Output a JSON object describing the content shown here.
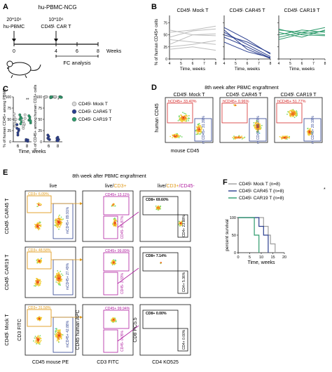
{
  "panels": {
    "A": {
      "letter": "A",
      "model": "hu-PBMC-NCG",
      "inject_pbmc_count": "20*10⁶",
      "inject_pbmc_label": "hu-PBMC",
      "inject_car_count": "10*10⁶",
      "inject_car_label": "CD45ᴸ CAR T",
      "timeline_ticks": [
        "0",
        "4",
        "6",
        "8"
      ],
      "timeline_unit": "Weeks",
      "timeline_caption": "FC analysis"
    },
    "B": {
      "letter": "B",
      "ylabel": "% of human CD45+ cells",
      "xlabel": "Time, weeks",
      "xticks": [
        "4",
        "5",
        "6",
        "7",
        "8"
      ],
      "yticks": [
        "0",
        "25",
        "50",
        "75"
      ],
      "subplots": [
        {
          "title": "CD45ᴸ Mock T",
          "color": "#bdbdbd"
        },
        {
          "title": "CD45ᴸ CAR45 T",
          "color": "#2b3f8f"
        },
        {
          "title": "CD45ᴸ CAR19 T",
          "color": "#2e9b6c"
        }
      ]
    },
    "C": {
      "letter": "C",
      "ylabel_left": "% of human CD45+ among PBMC",
      "ylabel_right": "% of CD45+ among human CD3+ cells",
      "yticks_left": [
        "0",
        "25",
        "50",
        "75",
        "100"
      ],
      "yticks_right": [
        "0",
        "25",
        "50",
        "75",
        "100"
      ],
      "xticks": [
        "6",
        "8"
      ],
      "xlabel": "Time, weeks",
      "legend": [
        {
          "label": "CD45ᴸ Mock T",
          "color": "#d9d9d9"
        },
        {
          "label": "CD45ᴸ CAR45 T",
          "color": "#2b3f8f"
        },
        {
          "label": "CD45ᴸ CAR19 T",
          "color": "#2e9b6c"
        }
      ],
      "sig_left": "**",
      "sig_right": "*"
    },
    "D": {
      "letter": "D",
      "title": "8th week after PBMC engraftment",
      "ylabel": "human CD45",
      "xlabel": "mouse CD45",
      "plots": [
        {
          "title": "CD45ᴸ Mock T",
          "gate_h": "hCD45+ 33.40%",
          "gate_m": "m CD45+ 31.39%"
        },
        {
          "title": "CD45ᴸ CAR45 T",
          "gate_h": "hCD45+ 0.96%",
          "gate_m": "m CD45+ 56.13%"
        },
        {
          "title": "CD45ᴸ CAR19 T",
          "gate_h": "hCD45+ 51.77%",
          "gate_m": "m CD45+ 20.19%"
        }
      ]
    },
    "E": {
      "letter": "E",
      "title": "8th week after PBMC engraftment",
      "col_live": "live",
      "col_cd3_prefix": "live/",
      "col_cd3_highlight": "CD3+",
      "col_cd4_a": "live/",
      "col_cd4_b": "CD3+",
      "col_cd4_c": "/CD45-",
      "rows": [
        {
          "label": "CD45ᴸ CAR45 T",
          "cd3": "CD3+ 6.09%",
          "mcd45": "mCD45+ 89.91%",
          "cd45pos": "CD45+ 13.11%",
          "cd45neg": "CD45- 85.87%",
          "cd8": "CD8+ 69.60%",
          "cd4": "CD4+ 23.88%"
        },
        {
          "label": "CD45ᴸ CAR19 T",
          "cd3": "CD3+ 48.58%",
          "mcd45": "mCD45+ 27.49%",
          "cd45pos": "CD45+ 99.89%",
          "cd45neg": "CD45- 3.33%",
          "cd8": "CD8+ 7.14%",
          "cd4": "CD4+ 5.36%"
        },
        {
          "label": "CD45ᴸ Mock T",
          "cd3": "CD3+ 31.58%",
          "mcd45": "mCD45+ 42.88%",
          "cd45pos": "CD45+ 99.94%",
          "cd45neg": "CD45- 0.05%",
          "cd8": "CD8+ 0.00%",
          "cd4": "CD4+ 0.00%"
        }
      ],
      "x1": "CD45 mouse PE",
      "y1": "CD3 FITC",
      "x2": "CD3 FITC",
      "y2": "CD45 human APC",
      "x3": "CD4 KO525",
      "y3": "CD8 PC5.5"
    },
    "F": {
      "letter": "F",
      "legend": [
        {
          "label": "CD45ᴸ Mock T (n=8)",
          "color": "#9e9e9e"
        },
        {
          "label": "CD45ᴸ CAR45 T (n=8)",
          "color": "#2b3f8f"
        },
        {
          "label": "CD45ᴸ CAR19 T (n=8)",
          "color": "#2e9b6c"
        }
      ],
      "sig": "*",
      "ylabel": "percent survival",
      "xlabel": "Time, weeks",
      "yticks": [
        "0",
        "50",
        "100"
      ],
      "xticks": [
        "0",
        "5",
        "10",
        "15",
        "20"
      ]
    }
  },
  "chart_data": [
    {
      "type": "line",
      "title": "CD45ᴸ Mock T",
      "xlabel": "Time, weeks",
      "ylabel": "% of human CD45+ cells",
      "x": [
        4,
        6,
        8
      ],
      "ylim": [
        0,
        90
      ],
      "series": [
        {
          "values": [
            55,
            60,
            68
          ]
        },
        {
          "values": [
            45,
            58,
            62
          ]
        },
        {
          "values": [
            30,
            50,
            52
          ]
        },
        {
          "values": [
            60,
            50,
            48
          ]
        },
        {
          "values": [
            40,
            35,
            30
          ]
        },
        {
          "values": [
            25,
            30,
            38
          ]
        },
        {
          "values": [
            20,
            25,
            18
          ]
        }
      ]
    },
    {
      "type": "line",
      "title": "CD45ᴸ CAR45 T",
      "xlabel": "Time, weeks",
      "ylabel": "% of human CD45+ cells",
      "x": [
        4,
        6,
        8
      ],
      "ylim": [
        0,
        90
      ],
      "series": [
        {
          "values": [
            65,
            40,
            10
          ]
        },
        {
          "values": [
            55,
            30,
            5
          ]
        },
        {
          "values": [
            45,
            25,
            2
          ]
        },
        {
          "values": [
            60,
            20,
            1
          ]
        },
        {
          "values": [
            35,
            15,
            3
          ]
        },
        {
          "values": [
            50,
            35,
            12
          ]
        }
      ]
    },
    {
      "type": "line",
      "title": "CD45ᴸ CAR19 T",
      "xlabel": "Time, weeks",
      "ylabel": "% of human CD45+ cells",
      "x": [
        4,
        6,
        8
      ],
      "ylim": [
        0,
        90
      ],
      "series": [
        {
          "values": [
            60,
            55,
            65
          ]
        },
        {
          "values": [
            50,
            60,
            55
          ]
        },
        {
          "values": [
            55,
            45,
            60
          ]
        },
        {
          "values": [
            45,
            55,
            50
          ]
        },
        {
          "values": [
            62,
            50,
            48
          ]
        },
        {
          "values": [
            40,
            52,
            58
          ]
        }
      ]
    },
    {
      "type": "scatter",
      "xlabel": "Time, weeks",
      "ylabel": "% of human CD45+ among PBMC",
      "categories": [
        "6",
        "8"
      ],
      "ylim": [
        0,
        100
      ],
      "series": [
        {
          "name": "CD45ᴸ Mock T",
          "values": [
            [
              55,
              48,
              40,
              62,
              35,
              50,
              45
            ],
            [
              45,
              38,
              52,
              30,
              40,
              60,
              35
            ]
          ]
        },
        {
          "name": "CD45ᴸ CAR45 T",
          "values": [
            [
              30,
              20,
              25,
              38,
              15,
              28
            ],
            [
              2,
              3,
              1,
              5,
              2,
              4
            ]
          ]
        },
        {
          "name": "CD45ᴸ CAR19 T",
          "values": [
            [
              50,
              55,
              45,
              60,
              40,
              52
            ],
            [
              48,
              55,
              42,
              58,
              50,
              46
            ]
          ]
        }
      ]
    },
    {
      "type": "scatter",
      "xlabel": "Time, weeks",
      "ylabel": "% of CD45+ among human CD3+ cells",
      "categories": [
        "6",
        "8"
      ],
      "ylim": [
        0,
        100
      ],
      "series": [
        {
          "name": "CD45ᴸ Mock T",
          "values": [
            [
              100,
              100,
              100,
              99,
              100
            ],
            [
              100,
              99,
              100,
              100,
              100
            ]
          ]
        },
        {
          "name": "CD45ᴸ CAR45 T",
          "values": [
            [
              8,
              12,
              5,
              15,
              6
            ],
            [
              3,
              10,
              5,
              8,
              2
            ]
          ]
        },
        {
          "name": "CD45ᴸ CAR19 T",
          "values": [
            [
              100,
              99,
              100,
              98,
              100
            ],
            [
              100,
              100,
              99,
              100,
              99
            ]
          ]
        }
      ]
    },
    {
      "type": "line",
      "xlabel": "Time, weeks",
      "ylabel": "percent survival",
      "ylim": [
        0,
        100
      ],
      "xlim": [
        0,
        20
      ],
      "series": [
        {
          "name": "CD45ᴸ Mock T (n=8)",
          "steps": [
            [
              0,
              100
            ],
            [
              11,
              100
            ],
            [
              11,
              75
            ],
            [
              13,
              75
            ],
            [
              13,
              50
            ],
            [
              14,
              50
            ],
            [
              14,
              25
            ],
            [
              16,
              25
            ],
            [
              16,
              0
            ]
          ]
        },
        {
          "name": "CD45ᴸ CAR45 T (n=8)",
          "steps": [
            [
              0,
              100
            ],
            [
              9,
              100
            ],
            [
              9,
              75
            ],
            [
              11,
              75
            ],
            [
              11,
              50
            ],
            [
              13,
              50
            ],
            [
              13,
              0
            ]
          ]
        },
        {
          "name": "CD45ᴸ CAR19 T (n=8)",
          "steps": [
            [
              0,
              100
            ],
            [
              7,
              100
            ],
            [
              7,
              50
            ],
            [
              9,
              50
            ],
            [
              9,
              0
            ]
          ]
        }
      ]
    }
  ]
}
